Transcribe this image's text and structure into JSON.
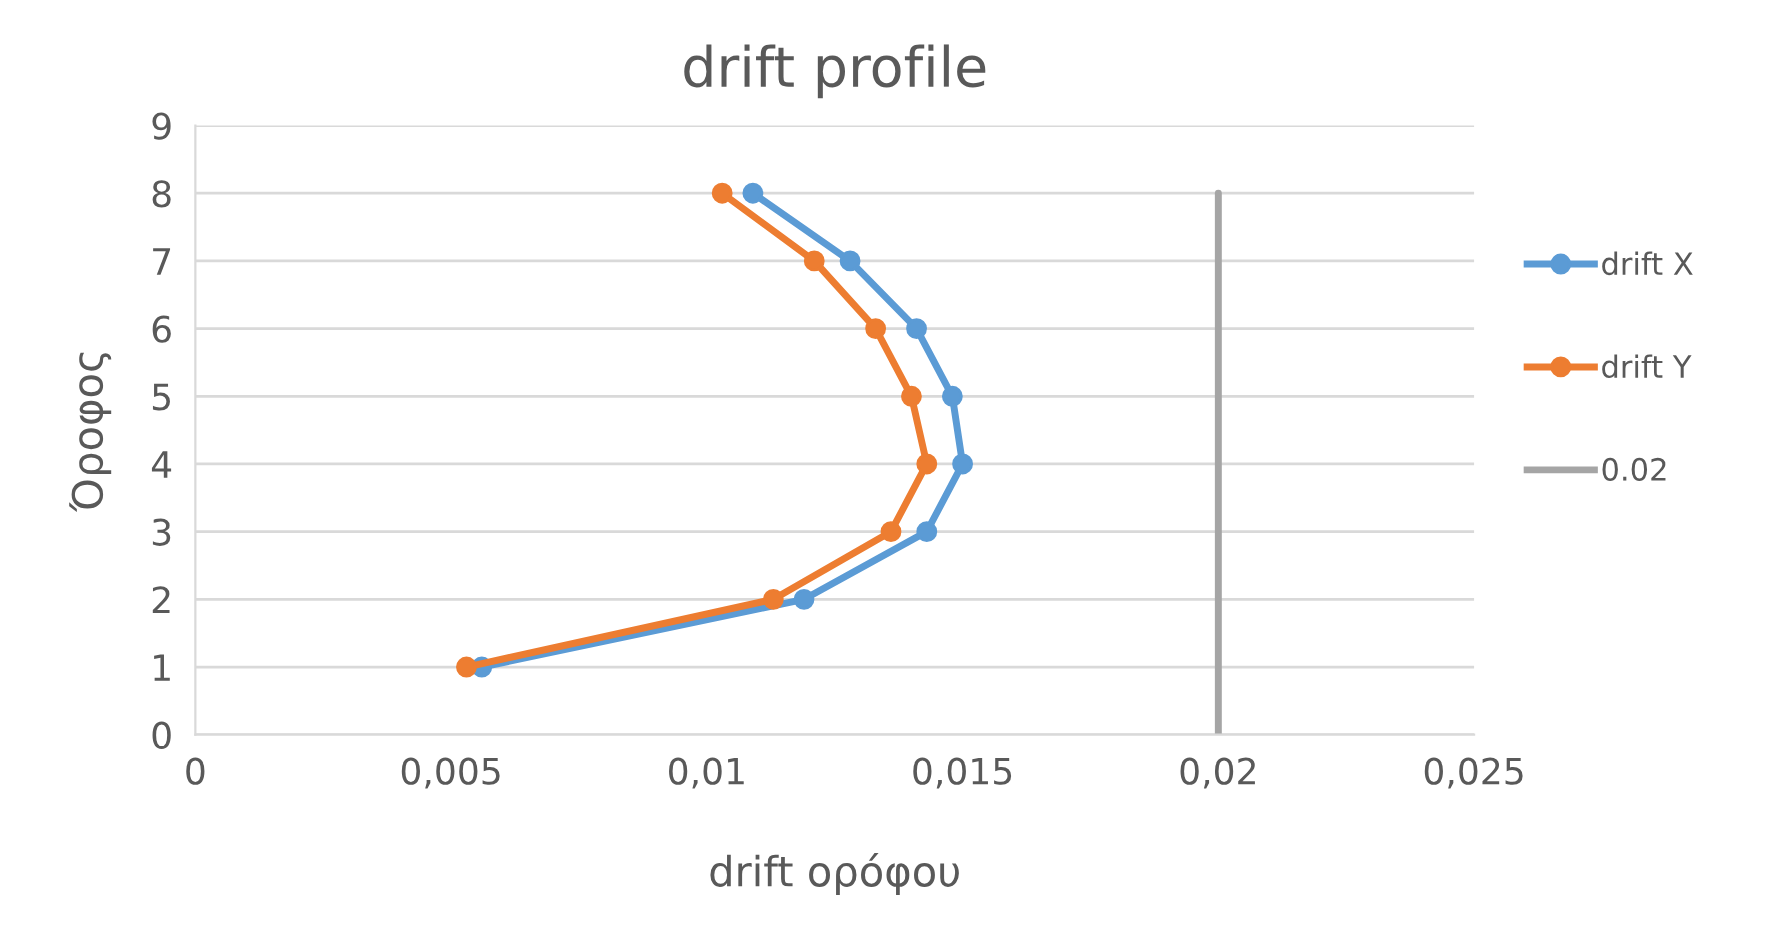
{
  "chart_data": {
    "type": "line",
    "title": "drift profile",
    "xlabel": "drift ορόφου",
    "ylabel": "Όροφος",
    "xlim": [
      0,
      0.025
    ],
    "xticks": [
      0,
      {
        "value": 0.005,
        "label": "0,005"
      },
      {
        "value": 0.01,
        "label": "0,01"
      },
      {
        "value": 0.015,
        "label": "0,015"
      },
      {
        "value": 0.02,
        "label": "0,02"
      },
      {
        "value": 0.025,
        "label": "0,025"
      }
    ],
    "ylim": [
      0,
      9
    ],
    "yticks": [
      0,
      1,
      2,
      3,
      4,
      5,
      6,
      7,
      8,
      9
    ],
    "grid": "y",
    "legend": "right",
    "series": [
      {
        "name": "drift X",
        "color": "#5b9bd5",
        "marker": "circle",
        "x": [
          0.0056,
          0.0119,
          0.0143,
          0.015,
          0.0148,
          0.0141,
          0.0128,
          0.0109
        ],
        "values": [
          1,
          2,
          3,
          4,
          5,
          6,
          7,
          8
        ]
      },
      {
        "name": "drift Y",
        "color": "#ed7d31",
        "marker": "circle",
        "x": [
          0.0053,
          0.0113,
          0.0136,
          0.0143,
          0.014,
          0.0133,
          0.0121,
          0.0103
        ],
        "values": [
          1,
          2,
          3,
          4,
          5,
          6,
          7,
          8
        ]
      },
      {
        "name": "0.02",
        "color": "#a5a5a5",
        "marker": "none",
        "x": [
          0.02,
          0.02
        ],
        "values": [
          0,
          8
        ]
      }
    ]
  }
}
